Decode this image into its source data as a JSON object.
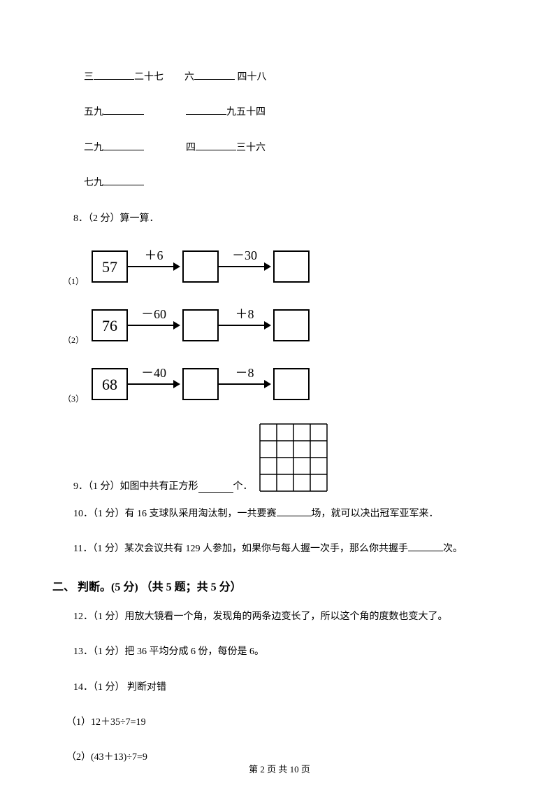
{
  "fill": {
    "l1a": "三",
    "l1b": "二十七",
    "l1c": "六",
    "l1d": "四十八",
    "l2a": "五九",
    "l2b": "九五十四",
    "l3a": "二九",
    "l3b": "四",
    "l3c": "三十六",
    "l4a": "七九"
  },
  "q8": {
    "label": "8．（2 分）算一算．",
    "sub1": "（1）",
    "sub2": "（2）",
    "sub3": "（3）",
    "box_stroke": "#000000",
    "box_fill": "#ffffff",
    "arrow_stroke": "#000000",
    "font_size": 22,
    "op_font_size": 18,
    "start1": "57",
    "op1a": "＋6",
    "op1b": "－30",
    "start2": "76",
    "op2a": "－60",
    "op2b": "＋8",
    "start3": "68",
    "op3a": "－40",
    "op3b": "－8"
  },
  "q9": {
    "label_a": "9．（1 分）如图中共有正方形",
    "label_b": " 个．",
    "grid_stroke": "#000000",
    "grid_cells": 4,
    "cell_size": 24
  },
  "q10": {
    "label_a": "10．（1 分）有 16 支球队采用淘汰制，一共要赛",
    "label_b": "场，就可以决出冠军亚军来．"
  },
  "q11": {
    "label_a": "11．（1 分）某次会议共有 129 人参加，如果你与每人握一次手，那么你共握手",
    "label_b": "次。"
  },
  "section2": "二、 判断。(5 分)  （共 5 题；共 5 分）",
  "q12": "12．（1 分）用放大镜看一个角，发现角的两条边变长了，所以这个角的度数也变大了。",
  "q13": "13．（1 分）把 36 平均分成 6 份，每份是 6。",
  "q14": {
    "label": "14．（1 分）  判断对错",
    "s1": "（1）12＋35÷7=19",
    "s2": "（2）(43＋13)÷7=9"
  },
  "footer": "第 2 页 共 10 页"
}
